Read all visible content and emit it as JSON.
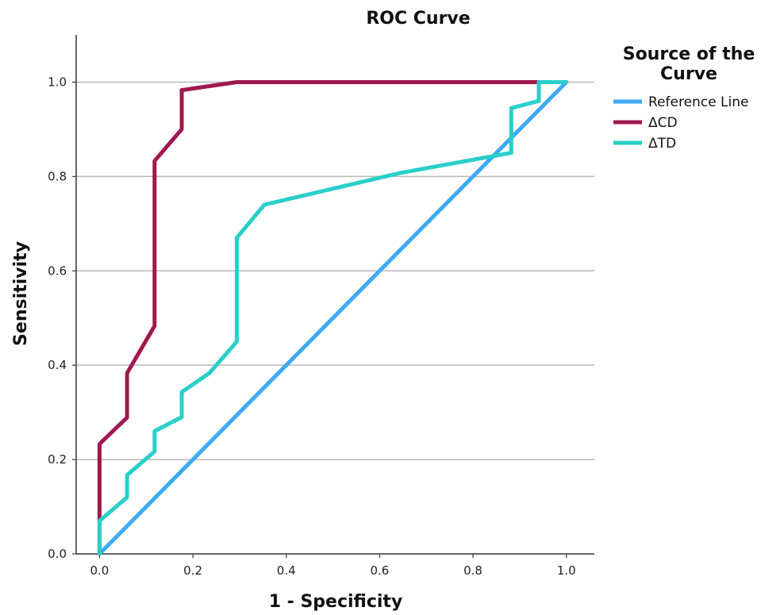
{
  "chart_data": {
    "type": "line",
    "title": "ROC Curve",
    "xlabel": "1 - Specificity",
    "ylabel": "Sensitivity",
    "xlim": [
      -0.05,
      1.06
    ],
    "ylim": [
      0.0,
      1.1
    ],
    "xticks": [
      0.0,
      0.2,
      0.4,
      0.6,
      0.8,
      1.0
    ],
    "yticks": [
      0.0,
      0.2,
      0.4,
      0.6,
      0.8,
      1.0
    ],
    "xtick_labels": [
      "0.0",
      "0.2",
      "0.4",
      "0.6",
      "0.8",
      "1.0"
    ],
    "ytick_labels": [
      "0.0",
      "0.2",
      "0.4",
      "0.6",
      "0.8",
      "1.0"
    ],
    "grid": "horizontal",
    "legend": {
      "title_lines": [
        "Source of the",
        "Curve"
      ],
      "placement": "right"
    },
    "series": [
      {
        "name": "Reference Line",
        "color": "#3ea9f5",
        "points": [
          [
            0.0,
            0.0
          ],
          [
            1.0,
            1.0
          ]
        ]
      },
      {
        "name": "ΔCD",
        "color": "#a01850",
        "points": [
          [
            0.0,
            0.0
          ],
          [
            0.0,
            0.08
          ],
          [
            0.0,
            0.233
          ],
          [
            0.059,
            0.289
          ],
          [
            0.059,
            0.383
          ],
          [
            0.118,
            0.483
          ],
          [
            0.118,
            0.833
          ],
          [
            0.176,
            0.9
          ],
          [
            0.176,
            0.983
          ],
          [
            0.294,
            1.0
          ],
          [
            0.5,
            1.0
          ],
          [
            1.0,
            1.0
          ]
        ]
      },
      {
        "name": "ΔTD",
        "color": "#29cfc9",
        "points": [
          [
            0.0,
            0.0
          ],
          [
            0.0,
            0.07
          ],
          [
            0.059,
            0.12
          ],
          [
            0.059,
            0.167
          ],
          [
            0.118,
            0.217
          ],
          [
            0.118,
            0.26
          ],
          [
            0.176,
            0.29
          ],
          [
            0.176,
            0.343
          ],
          [
            0.235,
            0.383
          ],
          [
            0.294,
            0.45
          ],
          [
            0.294,
            0.67
          ],
          [
            0.353,
            0.74
          ],
          [
            0.647,
            0.808
          ],
          [
            0.882,
            0.85
          ],
          [
            0.882,
            0.945
          ],
          [
            0.941,
            0.96
          ],
          [
            0.941,
            1.0
          ],
          [
            1.0,
            1.0
          ]
        ]
      }
    ]
  }
}
